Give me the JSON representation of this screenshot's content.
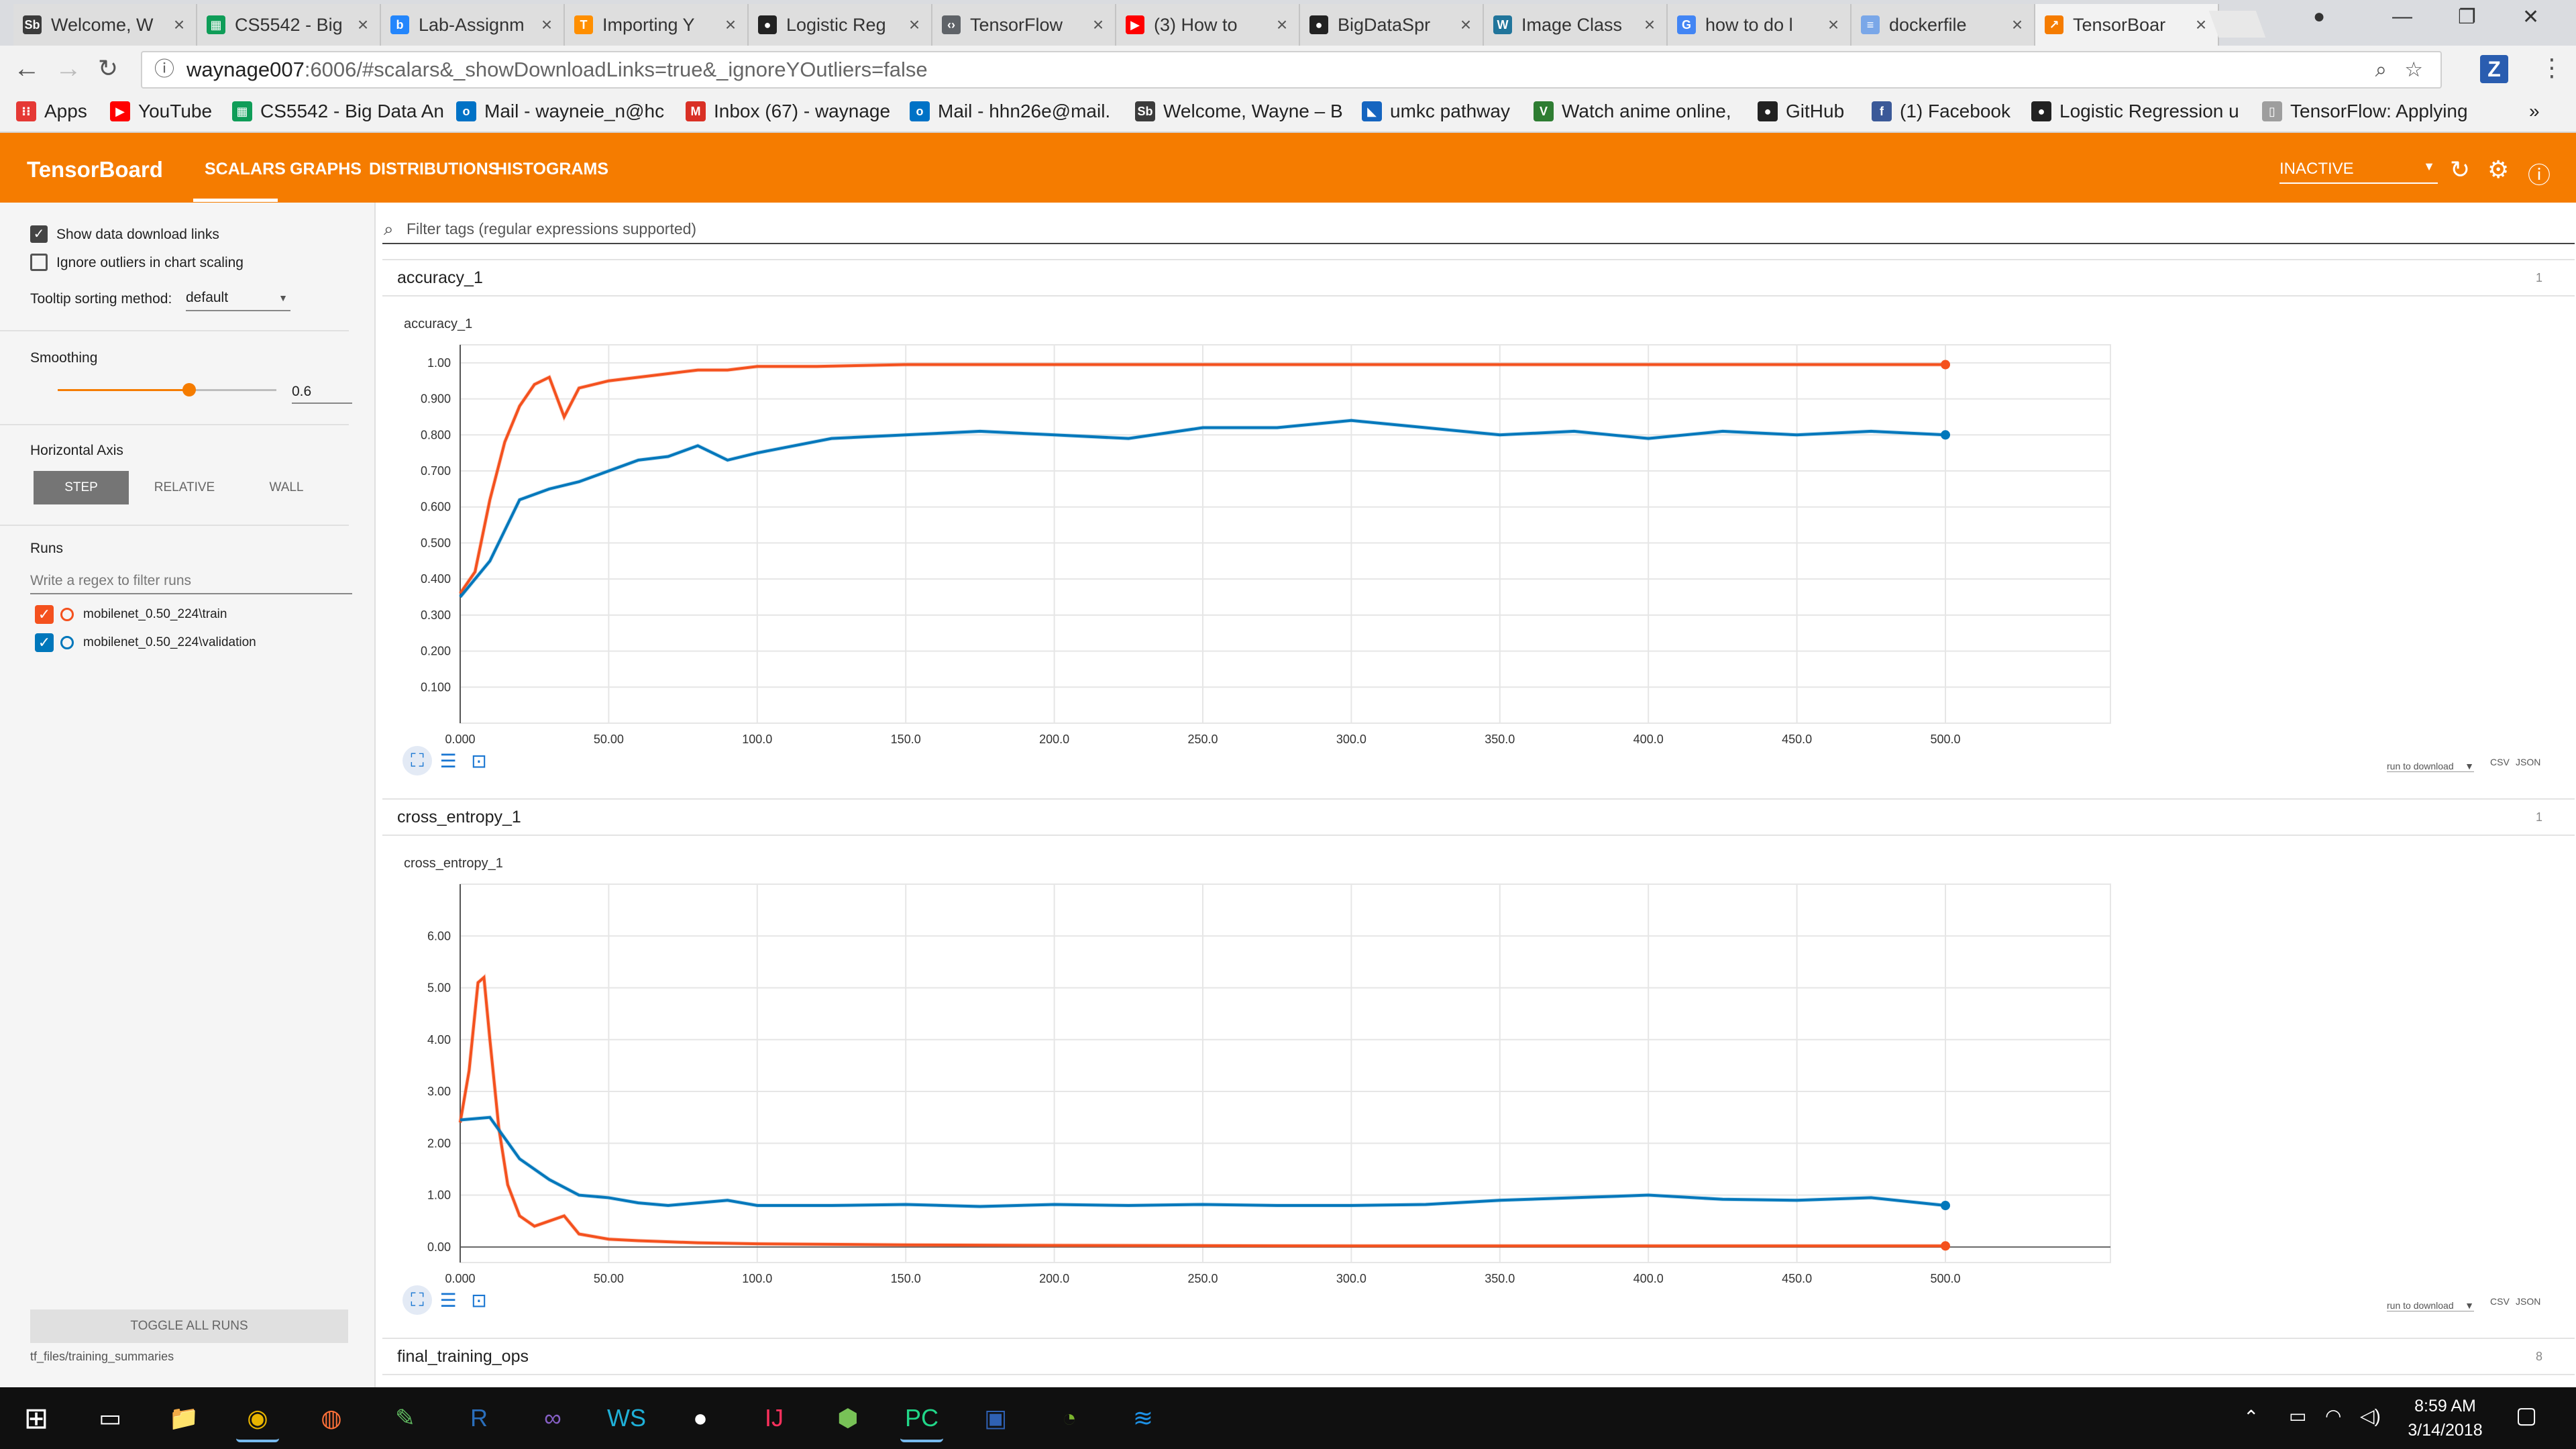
{
  "browser": {
    "tabs": [
      {
        "title": "Welcome, W",
        "icon": "slate-logo-icon",
        "color": "#3c3c3c"
      },
      {
        "title": "CS5542 - Big",
        "icon": "sheets-icon",
        "color": "#0f9d58"
      },
      {
        "title": "Lab-Assignm",
        "icon": "box-icon",
        "color": "#2486fc"
      },
      {
        "title": "Importing Y",
        "icon": "tensorflow-icon",
        "color": "#ff8f00"
      },
      {
        "title": "Logistic Reg",
        "icon": "github-icon",
        "color": "#222222"
      },
      {
        "title": "TensorFlow",
        "icon": "code-icon",
        "color": "#5f6368"
      },
      {
        "title": "(3) How to",
        "icon": "youtube-icon",
        "color": "#ff0000"
      },
      {
        "title": "BigDataSpr",
        "icon": "github-icon",
        "color": "#222222"
      },
      {
        "title": "Image Class",
        "icon": "wordpress-icon",
        "color": "#21759b"
      },
      {
        "title": "how to do l",
        "icon": "google-icon",
        "color": "#4285f4"
      },
      {
        "title": "dockerfile",
        "icon": "docs-icon",
        "color": "#7aa7e8"
      },
      {
        "title": "TensorBoar",
        "icon": "tensorboard-icon",
        "color": "#f57c00"
      }
    ],
    "url_host": "waynage007",
    "url_rest": ":6006/#scalars&_showDownloadLinks=true&_ignoreYOutliers=false",
    "bookmarks": [
      {
        "label": "Apps",
        "icon": "apps-grid-icon",
        "color": "#e53935"
      },
      {
        "label": "YouTube",
        "icon": "youtube-icon",
        "color": "#ff0000"
      },
      {
        "label": "CS5542 - Big Data An",
        "icon": "sheets-icon",
        "color": "#0f9d58"
      },
      {
        "label": "Mail - wayneie_n@hc",
        "icon": "outlook-icon",
        "color": "#0072c6"
      },
      {
        "label": "Inbox (67) - waynage",
        "icon": "gmail-icon",
        "color": "#d93025"
      },
      {
        "label": "Mail - hhn26e@mail.",
        "icon": "outlook-icon",
        "color": "#0072c6"
      },
      {
        "label": "Welcome, Wayne – B",
        "icon": "slate-logo-icon",
        "color": "#3c3c3c"
      },
      {
        "label": "umkc pathway",
        "icon": "bookmark-icon",
        "color": "#1565c0"
      },
      {
        "label": "Watch anime online,",
        "icon": "anime-icon",
        "color": "#2e7d32"
      },
      {
        "label": "GitHub",
        "icon": "github-icon",
        "color": "#222222"
      },
      {
        "label": "(1) Facebook",
        "icon": "facebook-icon",
        "color": "#3b5998"
      },
      {
        "label": "Logistic Regression u",
        "icon": "github-icon",
        "color": "#222222"
      },
      {
        "label": "TensorFlow: Applying",
        "icon": "page-icon",
        "color": "#9e9e9e"
      }
    ]
  },
  "tensorboard": {
    "title": "TensorBoard",
    "nav": [
      "SCALARS",
      "GRAPHS",
      "DISTRIBUTIONS",
      "HISTOGRAMS"
    ],
    "run_status": "INACTIVE",
    "accent": "#f57c00"
  },
  "sidebar": {
    "show_download_links": "Show data download links",
    "ignore_outliers": "Ignore outliers in chart scaling",
    "tooltip_label": "Tooltip sorting method:",
    "tooltip_value": "default",
    "smoothing_label": "Smoothing",
    "smoothing_value": "0.6",
    "smoothing_fraction": 0.6,
    "horizontal_axis_label": "Horizontal Axis",
    "axis_options": [
      "STEP",
      "RELATIVE",
      "WALL"
    ],
    "runs_label": "Runs",
    "runs_filter_placeholder": "Write a regex to filter runs",
    "runs": [
      {
        "name": "mobilenet_0.50_224\\train",
        "color": "#f4511e"
      },
      {
        "name": "mobilenet_0.50_224\\validation",
        "color": "#0077bb"
      }
    ],
    "toggle_all": "TOGGLE ALL RUNS",
    "logdir": "tf_files/training_summaries"
  },
  "main": {
    "filter_placeholder": "Filter tags (regular expressions supported)",
    "cards": [
      {
        "name": "accuracy_1",
        "count": "1"
      },
      {
        "name": "cross_entropy_1",
        "count": "1"
      },
      {
        "name": "final_training_ops",
        "count": "8"
      }
    ],
    "download_label": "run to download",
    "csv": "CSV",
    "json": "JSON"
  },
  "chart_data": [
    {
      "type": "line",
      "title": "accuracy_1",
      "xlim": [
        0,
        500
      ],
      "ylim": [
        0,
        1.05
      ],
      "x_ticks": [
        "0.000",
        "50.00",
        "100.0",
        "150.0",
        "200.0",
        "250.0",
        "300.0",
        "350.0",
        "400.0",
        "450.0",
        "500.0"
      ],
      "y_ticks": [
        "0.100",
        "0.200",
        "0.300",
        "0.400",
        "0.500",
        "0.600",
        "0.700",
        "0.800",
        "0.900",
        "1.00"
      ],
      "grid": true,
      "series": [
        {
          "name": "mobilenet_0.50_224\\train",
          "color": "#f4511e",
          "x": [
            0,
            5,
            10,
            15,
            20,
            25,
            30,
            35,
            40,
            50,
            60,
            70,
            80,
            90,
            100,
            120,
            150,
            200,
            300,
            400,
            500
          ],
          "y": [
            0.36,
            0.42,
            0.62,
            0.78,
            0.88,
            0.94,
            0.96,
            0.85,
            0.93,
            0.95,
            0.96,
            0.97,
            0.98,
            0.98,
            0.99,
            0.99,
            0.995,
            0.995,
            0.995,
            0.995,
            0.995
          ]
        },
        {
          "name": "mobilenet_0.50_224\\validation",
          "color": "#0077bb",
          "x": [
            0,
            10,
            20,
            30,
            40,
            50,
            60,
            70,
            80,
            90,
            100,
            125,
            150,
            175,
            200,
            225,
            250,
            275,
            300,
            325,
            350,
            375,
            400,
            425,
            450,
            475,
            500
          ],
          "y": [
            0.35,
            0.45,
            0.62,
            0.65,
            0.67,
            0.7,
            0.73,
            0.74,
            0.77,
            0.73,
            0.75,
            0.79,
            0.8,
            0.81,
            0.8,
            0.79,
            0.82,
            0.82,
            0.84,
            0.82,
            0.8,
            0.81,
            0.79,
            0.81,
            0.8,
            0.81,
            0.8
          ]
        }
      ]
    },
    {
      "type": "line",
      "title": "cross_entropy_1",
      "xlim": [
        0,
        500
      ],
      "ylim": [
        -0.3,
        7.0
      ],
      "x_ticks": [
        "0.000",
        "50.00",
        "100.0",
        "150.0",
        "200.0",
        "250.0",
        "300.0",
        "350.0",
        "400.0",
        "450.0",
        "500.0"
      ],
      "y_ticks": [
        "0.00",
        "1.00",
        "2.00",
        "3.00",
        "4.00",
        "5.00",
        "6.00"
      ],
      "grid": true,
      "series": [
        {
          "name": "mobilenet_0.50_224\\train",
          "color": "#f4511e",
          "x": [
            0,
            3,
            6,
            8,
            10,
            13,
            16,
            20,
            25,
            30,
            35,
            40,
            50,
            60,
            80,
            100,
            150,
            200,
            300,
            400,
            500
          ],
          "y": [
            2.4,
            3.4,
            5.1,
            5.2,
            4.0,
            2.3,
            1.2,
            0.6,
            0.4,
            0.5,
            0.6,
            0.25,
            0.15,
            0.12,
            0.08,
            0.06,
            0.04,
            0.03,
            0.02,
            0.02,
            0.02
          ]
        },
        {
          "name": "mobilenet_0.50_224\\validation",
          "color": "#0077bb",
          "x": [
            0,
            10,
            20,
            30,
            40,
            50,
            60,
            70,
            80,
            90,
            100,
            125,
            150,
            175,
            200,
            225,
            250,
            275,
            300,
            325,
            350,
            375,
            400,
            425,
            450,
            475,
            500
          ],
          "y": [
            2.45,
            2.5,
            1.7,
            1.3,
            1.0,
            0.95,
            0.85,
            0.8,
            0.85,
            0.9,
            0.8,
            0.8,
            0.82,
            0.78,
            0.82,
            0.8,
            0.82,
            0.8,
            0.8,
            0.82,
            0.9,
            0.95,
            1.0,
            0.92,
            0.9,
            0.95,
            0.8
          ]
        }
      ]
    }
  ],
  "taskbar": {
    "apps": [
      "windows-start-icon",
      "desktop-icon",
      "file-explorer-icon",
      "chrome-icon",
      "firefox-icon",
      "notepad-icon",
      "r-icon",
      "visual-studio-icon",
      "webstorm-icon",
      "github-desktop-icon",
      "intellij-icon",
      "android-studio-icon",
      "pycharm-icon",
      "virtualbox-icon",
      "wechat-icon",
      "docker-icon"
    ],
    "time": "8:59 AM",
    "date": "3/14/2018"
  }
}
